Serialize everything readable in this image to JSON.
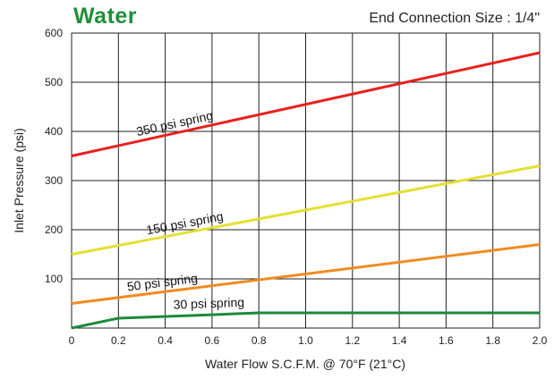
{
  "chart_data": {
    "type": "line",
    "title": "Water",
    "subtitle": "End Connection Size : 1/4\"",
    "xlabel": "Water Flow S.C.F.M. @ 70°F (21°C)",
    "ylabel": "Inlet Pressure (psi)",
    "xlim": [
      0,
      2.0
    ],
    "ylim": [
      0,
      600
    ],
    "x_ticks": [
      "0",
      "0.2",
      "0.4",
      "0.6",
      "0.8",
      "1.0",
      "1.2",
      "1.4",
      "1.6",
      "1.8",
      "2.0"
    ],
    "y_ticks": [
      "100",
      "200",
      "300",
      "400",
      "500",
      "600"
    ],
    "grid": true,
    "series": [
      {
        "name": "350 psi spring",
        "color": "#e8201e",
        "x": [
          0,
          2.0
        ],
        "y": [
          350,
          560
        ]
      },
      {
        "name": "150 psi spring",
        "color": "#e3e034",
        "x": [
          0,
          2.0
        ],
        "y": [
          150,
          330
        ]
      },
      {
        "name": "50 psi spring",
        "color": "#f18a22",
        "x": [
          0,
          2.0
        ],
        "y": [
          50,
          170
        ]
      },
      {
        "name": "30 psi spring",
        "color": "#1b8a3a",
        "x": [
          0,
          0.2,
          0.6,
          0.8,
          2.0
        ],
        "y": [
          0,
          20,
          27,
          31,
          31
        ]
      }
    ]
  }
}
